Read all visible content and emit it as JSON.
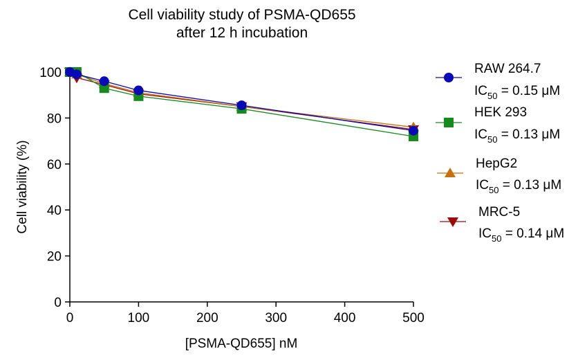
{
  "chart_data": {
    "type": "line",
    "title": [
      "Cell viability study of PSMA-QD655",
      "after 12 h incubation"
    ],
    "xlabel": "[PSMA-QD655] nM",
    "ylabel": "Cell viability (%)",
    "xlim": [
      0,
      500
    ],
    "ylim": [
      0,
      100
    ],
    "xticks": [
      0,
      100,
      200,
      300,
      400,
      500
    ],
    "yticks": [
      0,
      20,
      40,
      60,
      80,
      100
    ],
    "grid": false,
    "legend_position": "right",
    "series": [
      {
        "name": "RAW 264.7",
        "ic50_prefix": "IC",
        "ic50_sub": "50",
        "ic50_value": " = 0.15 μM",
        "marker": "circle",
        "color": "#0a0ab4",
        "x": [
          0,
          10,
          50,
          100,
          250,
          500
        ],
        "y": [
          100,
          99,
          96,
          92,
          85.5,
          74.5
        ]
      },
      {
        "name": "HEK 293",
        "ic50_prefix": "IC",
        "ic50_sub": "50",
        "ic50_value": " = 0.13 μM",
        "marker": "square",
        "color": "#168a1c",
        "x": [
          0,
          10,
          50,
          100,
          250,
          500
        ],
        "y": [
          100,
          100,
          93,
          89.5,
          84,
          72
        ]
      },
      {
        "name": "HepG2",
        "ic50_prefix": "IC",
        "ic50_sub": "50",
        "ic50_value": " = 0.13 μM",
        "marker": "triangle-up",
        "color": "#c8700e",
        "x": [
          0,
          10,
          50,
          100,
          250,
          500
        ],
        "y": [
          100,
          99,
          95,
          91,
          85,
          76
        ]
      },
      {
        "name": "MRC-5",
        "ic50_prefix": "IC",
        "ic50_sub": "50",
        "ic50_value": " = 0.14 μM",
        "marker": "triangle-down",
        "color": "#9a0a0a",
        "x": [
          0,
          10,
          50,
          100,
          250,
          500
        ],
        "y": [
          100,
          97.5,
          94.5,
          90.5,
          85,
          75
        ]
      }
    ]
  }
}
